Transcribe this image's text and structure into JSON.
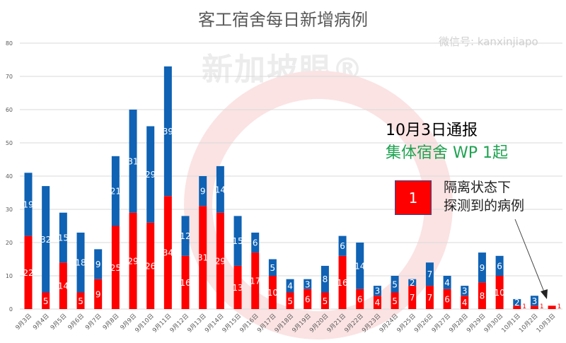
{
  "watermark": {
    "logo_text": "新加坡眼®",
    "wechat": "微信号: kanxinjiapo"
  },
  "annotation": {
    "line1": "10月3日通报",
    "line2": "集体宿舍 WP 1起",
    "box_value": "1",
    "box_label_1": "隔离状态下",
    "box_label_2": "探测到的病例"
  },
  "colors": {
    "red_series": "#ff0000",
    "blue_series": "#0f62b4",
    "annotation_green": "#1fa352"
  },
  "chart_data": {
    "type": "bar",
    "stacked": true,
    "title": "客工宿舍每日新增病例",
    "xlabel": "",
    "ylabel": "",
    "ylim": [
      0,
      80
    ],
    "yticks": [
      0,
      10,
      20,
      30,
      40,
      50,
      60,
      70,
      80
    ],
    "grid": true,
    "categories": [
      "9月3日",
      "9月4日",
      "9月5日",
      "9月6日",
      "9月7日",
      "9月8日",
      "9月9日",
      "9月10日",
      "9月11日",
      "9月12日",
      "9月13日",
      "9月14日",
      "9月15日",
      "9月16日",
      "9月17日",
      "9月18日",
      "9月19日",
      "9月20日",
      "9月21日",
      "9月22日",
      "9月23日",
      "9月24日",
      "9月25日",
      "9月26日",
      "9月27日",
      "9月28日",
      "9月29日",
      "9月30日",
      "10月1日",
      "10月2日",
      "10月3日"
    ],
    "series": [
      {
        "color": "#ff0000",
        "values": [
          22,
          5,
          14,
          5,
          9,
          25,
          29,
          26,
          34,
          16,
          31,
          29,
          13,
          17,
          10,
          5,
          6,
          5,
          16,
          6,
          4,
          5,
          7,
          7,
          6,
          4,
          8,
          10,
          1,
          1,
          1
        ]
      },
      {
        "color": "#0f62b4",
        "values": [
          19,
          32,
          15,
          18,
          9,
          21,
          31,
          29,
          39,
          12,
          9,
          14,
          15,
          6,
          5,
          4,
          3,
          8,
          6,
          14,
          3,
          5,
          2,
          7,
          4,
          3,
          9,
          6,
          2,
          3,
          0
        ]
      }
    ]
  }
}
